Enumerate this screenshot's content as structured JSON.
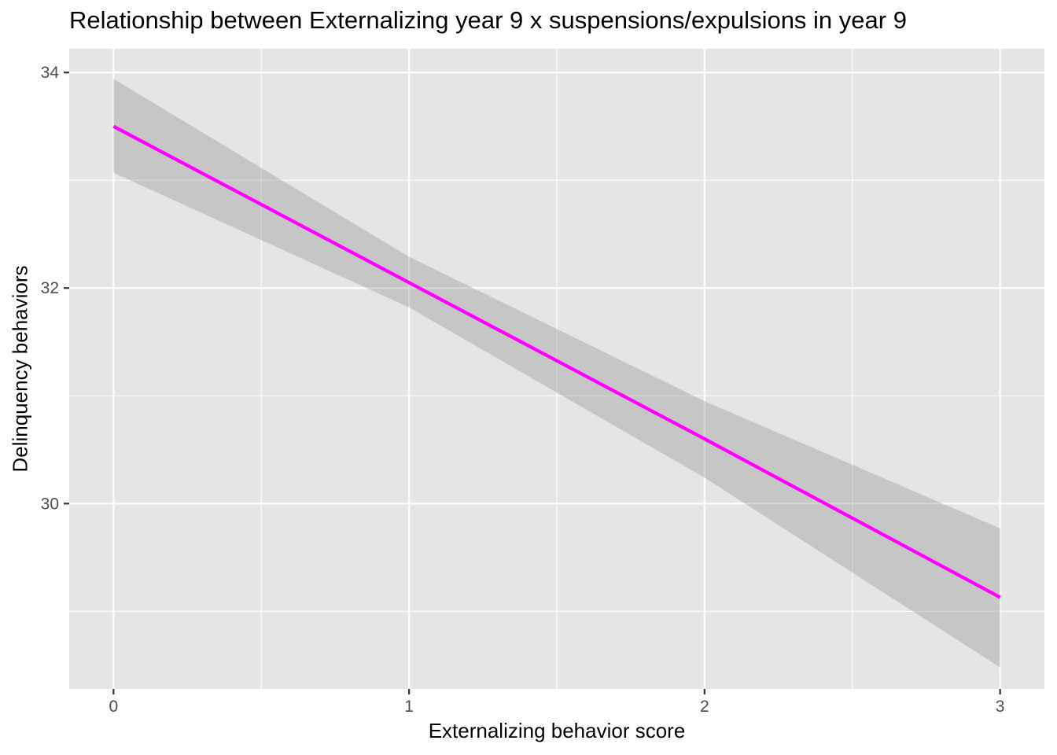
{
  "chart_data": {
    "type": "line",
    "title": "Relationship between Externalizing year 9 x suspensions/expulsions in year 9",
    "xlabel": "Externalizing behavior score",
    "ylabel": "Delinquency behaviors",
    "xlim": [
      -0.15,
      3.15
    ],
    "ylim": [
      28.28,
      34.22
    ],
    "x_ticks": [
      0,
      1,
      2,
      3
    ],
    "x_tick_labels": [
      "0",
      "1",
      "2",
      "3"
    ],
    "y_ticks": [
      30,
      32,
      34
    ],
    "y_tick_labels": [
      "30",
      "32",
      "34"
    ],
    "x_minor_ticks": [
      0.5,
      1.5,
      2.5
    ],
    "y_minor_ticks": [
      29,
      31,
      33
    ],
    "grid": true,
    "legend": "none",
    "series": [
      {
        "x": [
          0,
          1,
          2,
          3
        ],
        "y": [
          33.5,
          32.05,
          30.6,
          29.13
        ],
        "ci_lower": [
          33.07,
          31.82,
          30.24,
          28.48
        ],
        "ci_upper": [
          33.94,
          32.29,
          30.95,
          29.77
        ],
        "color": "#ff00ff",
        "band_color": "#999999"
      }
    ],
    "colors": {
      "panel_background": "#e5e5e5",
      "grid": "#ffffff",
      "axis_ticks": "#333333",
      "tick_labels": "#4d4d4d"
    }
  }
}
